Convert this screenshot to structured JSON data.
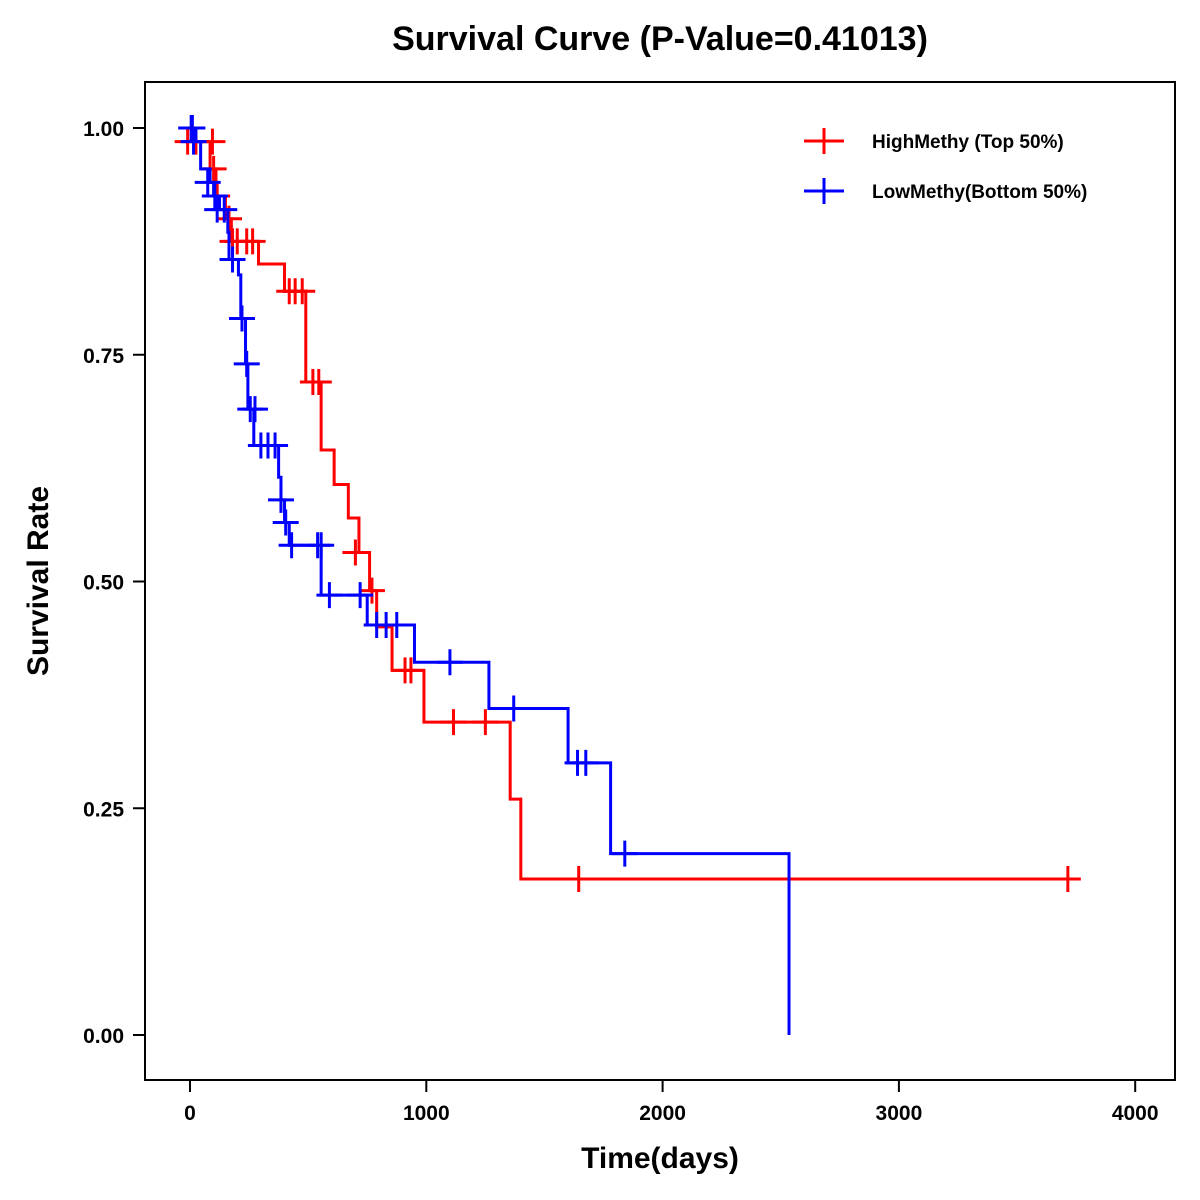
{
  "chart_data": {
    "type": "line",
    "subtype": "kaplan-meier-step",
    "title": "Survival Curve (P-Value=0.41013)",
    "xlabel": "Time(days)",
    "ylabel": "Survival Rate",
    "xlim": [
      -200,
      4150
    ],
    "ylim": [
      -0.05,
      1.05
    ],
    "xticks": [
      0,
      1000,
      2000,
      3000,
      4000
    ],
    "xtick_labels": [
      "0",
      "1000",
      "2000",
      "3000",
      "4000"
    ],
    "yticks": [
      0,
      0.25,
      0.5,
      0.75,
      1.0
    ],
    "ytick_labels": [
      "0.00",
      "0.25",
      "0.50",
      "0.75",
      "1.00"
    ],
    "grid": false,
    "legend_position": "top-right",
    "series": [
      {
        "name": "HighMethy (Top 50%)",
        "color": "#ff0000",
        "steps": [
          [
            0,
            1.0
          ],
          [
            10,
            0.985
          ],
          [
            85,
            0.955
          ],
          [
            110,
            0.925
          ],
          [
            150,
            0.9
          ],
          [
            175,
            0.875
          ],
          [
            290,
            0.85
          ],
          [
            400,
            0.82
          ],
          [
            490,
            0.72
          ],
          [
            555,
            0.645
          ],
          [
            610,
            0.607
          ],
          [
            670,
            0.57
          ],
          [
            715,
            0.532
          ],
          [
            760,
            0.49
          ],
          [
            790,
            0.45
          ],
          [
            855,
            0.402
          ],
          [
            990,
            0.345
          ],
          [
            1355,
            0.26
          ],
          [
            1400,
            0.172
          ],
          [
            3720,
            0.172
          ]
        ],
        "censored": [
          [
            -10,
            0.985
          ],
          [
            25,
            0.985
          ],
          [
            95,
            0.985
          ],
          [
            100,
            0.955
          ],
          [
            115,
            0.925
          ],
          [
            165,
            0.9
          ],
          [
            180,
            0.875
          ],
          [
            200,
            0.875
          ],
          [
            240,
            0.875
          ],
          [
            265,
            0.875
          ],
          [
            420,
            0.82
          ],
          [
            445,
            0.82
          ],
          [
            475,
            0.82
          ],
          [
            520,
            0.72
          ],
          [
            545,
            0.72
          ],
          [
            700,
            0.532
          ],
          [
            770,
            0.49
          ],
          [
            910,
            0.402
          ],
          [
            935,
            0.402
          ],
          [
            1115,
            0.345
          ],
          [
            1250,
            0.345
          ],
          [
            1645,
            0.172
          ],
          [
            3715,
            0.172
          ]
        ]
      },
      {
        "name": "LowMethy(Bottom 50%)",
        "color": "#0000ff",
        "steps": [
          [
            0,
            1.0
          ],
          [
            25,
            0.985
          ],
          [
            45,
            0.955
          ],
          [
            85,
            0.94
          ],
          [
            100,
            0.925
          ],
          [
            125,
            0.91
          ],
          [
            160,
            0.885
          ],
          [
            165,
            0.855
          ],
          [
            205,
            0.838
          ],
          [
            215,
            0.79
          ],
          [
            235,
            0.74
          ],
          [
            245,
            0.69
          ],
          [
            270,
            0.65
          ],
          [
            375,
            0.615
          ],
          [
            385,
            0.59
          ],
          [
            400,
            0.565
          ],
          [
            420,
            0.54
          ],
          [
            555,
            0.485
          ],
          [
            750,
            0.452
          ],
          [
            950,
            0.411
          ],
          [
            1265,
            0.36
          ],
          [
            1600,
            0.3
          ],
          [
            1780,
            0.2
          ],
          [
            2535,
            0.0
          ]
        ],
        "censored": [
          [
            5,
            1.0
          ],
          [
            10,
            1.0
          ],
          [
            15,
            0.985
          ],
          [
            75,
            0.94
          ],
          [
            105,
            0.925
          ],
          [
            115,
            0.91
          ],
          [
            145,
            0.91
          ],
          [
            180,
            0.855
          ],
          [
            220,
            0.79
          ],
          [
            240,
            0.74
          ],
          [
            255,
            0.69
          ],
          [
            275,
            0.69
          ],
          [
            300,
            0.65
          ],
          [
            330,
            0.65
          ],
          [
            360,
            0.65
          ],
          [
            385,
            0.59
          ],
          [
            405,
            0.565
          ],
          [
            430,
            0.54
          ],
          [
            540,
            0.54
          ],
          [
            555,
            0.54
          ],
          [
            590,
            0.485
          ],
          [
            720,
            0.485
          ],
          [
            790,
            0.452
          ],
          [
            830,
            0.452
          ],
          [
            875,
            0.452
          ],
          [
            1100,
            0.411
          ],
          [
            1370,
            0.36
          ],
          [
            1640,
            0.3
          ],
          [
            1675,
            0.3
          ],
          [
            1840,
            0.2
          ]
        ]
      }
    ]
  }
}
